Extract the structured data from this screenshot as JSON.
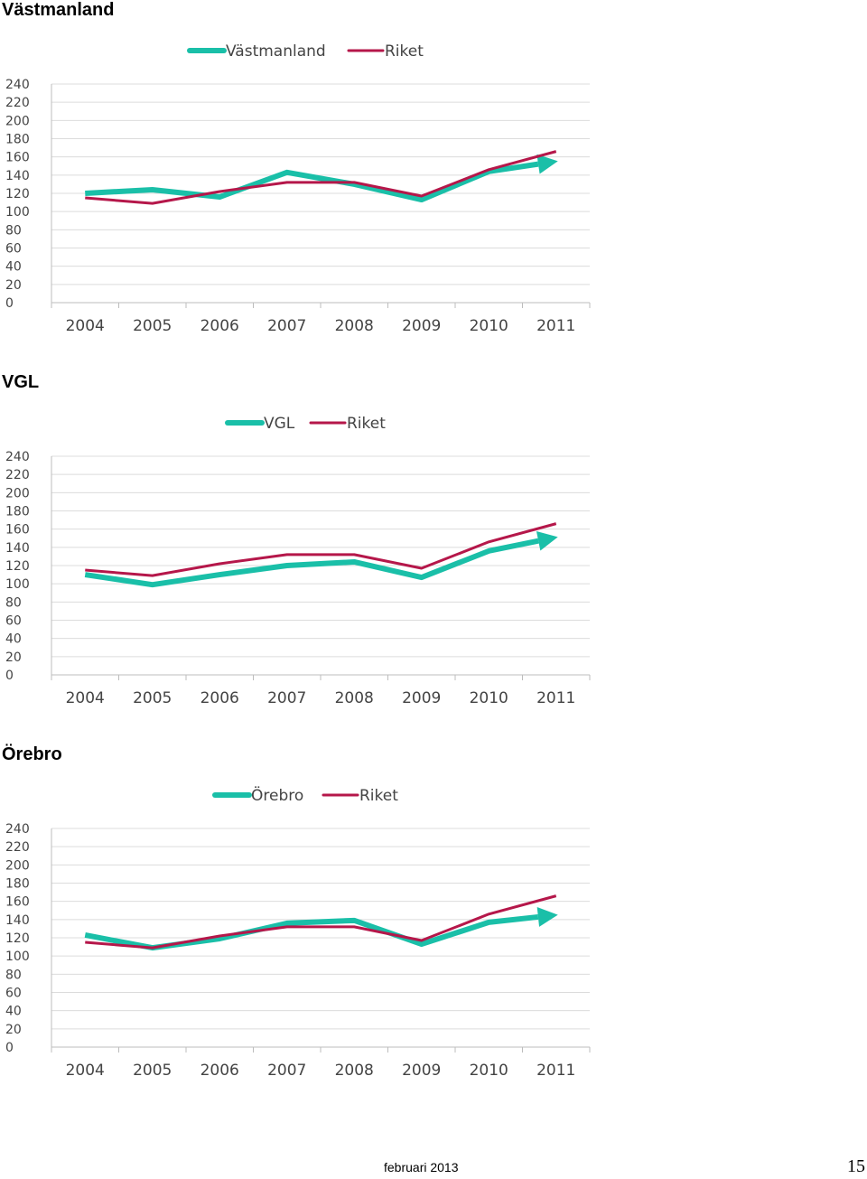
{
  "chart_data": [
    {
      "type": "line",
      "title": "Västmanland",
      "categories": [
        "2004",
        "2005",
        "2006",
        "2007",
        "2008",
        "2009",
        "2010",
        "2011"
      ],
      "ylim": [
        0,
        240
      ],
      "yticks": [
        0,
        20,
        40,
        60,
        80,
        100,
        120,
        140,
        160,
        180,
        200,
        220,
        240
      ],
      "grid": true,
      "legend": "top-center",
      "series": [
        {
          "name": "Västmanland",
          "color": "#1abfa8",
          "values": [
            120,
            124,
            116,
            143,
            130,
            113,
            144,
            155
          ],
          "trend_arrow": true
        },
        {
          "name": "Riket",
          "color": "#b5174a",
          "values": [
            115,
            109,
            122,
            132,
            132,
            117,
            146,
            166
          ],
          "trend_arrow": false
        }
      ]
    },
    {
      "type": "line",
      "title": "VGL",
      "categories": [
        "2004",
        "2005",
        "2006",
        "2007",
        "2008",
        "2009",
        "2010",
        "2011"
      ],
      "ylim": [
        0,
        240
      ],
      "yticks": [
        0,
        20,
        40,
        60,
        80,
        100,
        120,
        140,
        160,
        180,
        200,
        220,
        240
      ],
      "grid": true,
      "legend": "top-center",
      "series": [
        {
          "name": "VGL",
          "color": "#1abfa8",
          "values": [
            110,
            99,
            110,
            120,
            124,
            107,
            136,
            151
          ],
          "trend_arrow": true
        },
        {
          "name": "Riket",
          "color": "#b5174a",
          "values": [
            115,
            109,
            122,
            132,
            132,
            117,
            146,
            166
          ],
          "trend_arrow": false
        }
      ]
    },
    {
      "type": "line",
      "title": "Örebro",
      "categories": [
        "2004",
        "2005",
        "2006",
        "2007",
        "2008",
        "2009",
        "2010",
        "2011"
      ],
      "ylim": [
        0,
        240
      ],
      "yticks": [
        0,
        20,
        40,
        60,
        80,
        100,
        120,
        140,
        160,
        180,
        200,
        220,
        240
      ],
      "grid": true,
      "legend": "top-center",
      "series": [
        {
          "name": "Örebro",
          "color": "#1abfa8",
          "values": [
            123,
            109,
            119,
            136,
            139,
            113,
            137,
            145
          ],
          "trend_arrow": true
        },
        {
          "name": "Riket",
          "color": "#b5174a",
          "values": [
            115,
            109,
            122,
            132,
            132,
            117,
            146,
            166
          ],
          "trend_arrow": false
        }
      ]
    }
  ],
  "footer": {
    "date": "februari 2013",
    "page_number": "15"
  }
}
